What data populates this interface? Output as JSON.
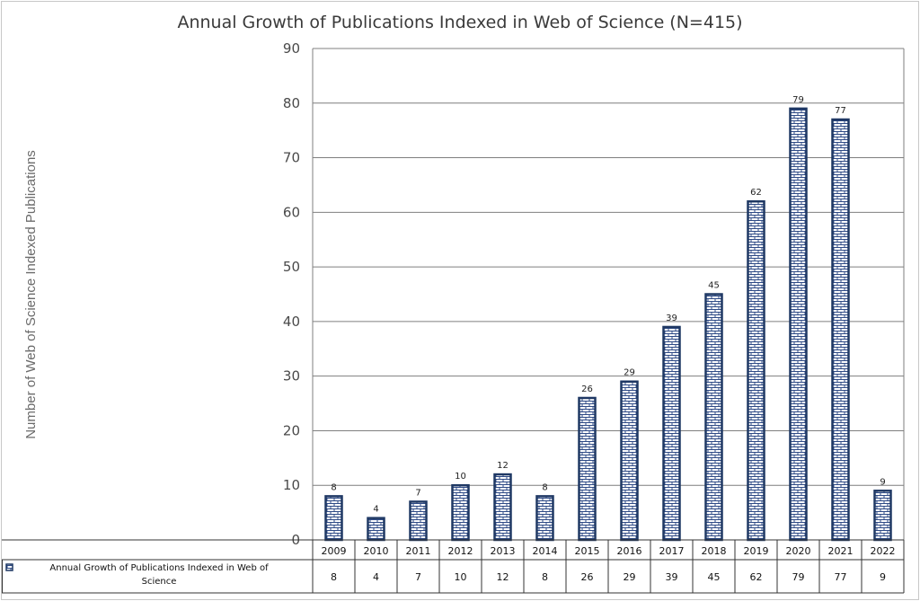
{
  "chart_data": {
    "type": "bar",
    "title": "Annual Growth of Publications Indexed in Web of Science (N=415)",
    "ylabel": "Number of Web of Science Indexed Publications",
    "xlabel": "",
    "categories": [
      "2009",
      "2010",
      "2011",
      "2012",
      "2013",
      "2014",
      "2015",
      "2016",
      "2017",
      "2018",
      "2019",
      "2020",
      "2021",
      "2022"
    ],
    "series": [
      {
        "name": "Annual Growth of Publications Indexed in Web of Science",
        "values": [
          8,
          4,
          7,
          10,
          12,
          8,
          26,
          29,
          39,
          45,
          62,
          79,
          77,
          9
        ]
      }
    ],
    "ylim": [
      0,
      90
    ],
    "yticks": [
      0,
      10,
      20,
      30,
      40,
      50,
      60,
      70,
      80,
      90
    ],
    "grid": true,
    "data_table": true,
    "colors": {
      "bar_border": "#1f3864",
      "bar_pattern": "#2e4a86",
      "grid": "#7f7f7f"
    }
  }
}
